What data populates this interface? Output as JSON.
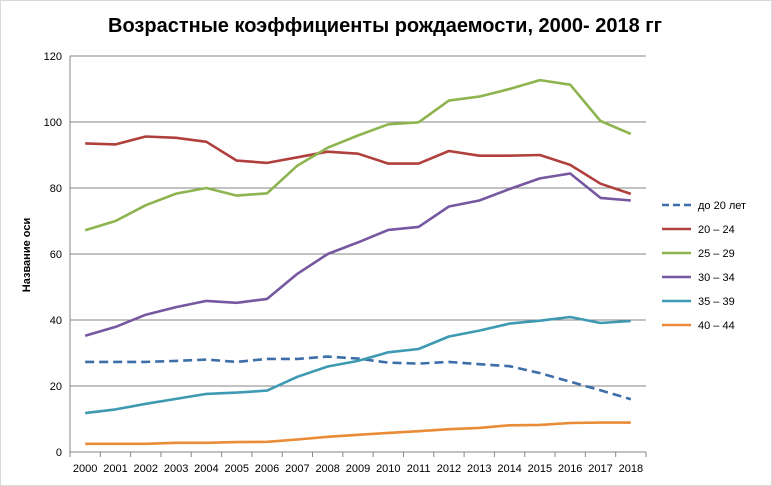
{
  "chart_data": {
    "type": "line",
    "title": "Возрастные коэффициенты рождаемости, 2000- 2018 гг",
    "xlabel": "",
    "ylabel": "Название оси",
    "ylim": [
      0,
      120
    ],
    "yticks": [
      0,
      20,
      40,
      60,
      80,
      100,
      120
    ],
    "grid": true,
    "legend_position": "right",
    "x": [
      "2000",
      "2001",
      "2002",
      "2003",
      "2004",
      "2005",
      "2006",
      "2007",
      "2008",
      "2009",
      "2010",
      "2011",
      "2012",
      "2013",
      "2014",
      "2015",
      "2016",
      "2017",
      "2018"
    ],
    "series": [
      {
        "name": "до 20 лет",
        "color": "#3C6EA8",
        "dashed": true,
        "values": [
          27.3,
          27.3,
          27.3,
          27.6,
          28.0,
          27.3,
          28.2,
          28.2,
          28.9,
          28.3,
          27.1,
          26.8,
          27.3,
          26.6,
          26.0,
          23.9,
          21.3,
          18.7,
          16.0
        ]
      },
      {
        "name": "20 – 24",
        "color": "#B0403D",
        "dashed": false,
        "values": [
          93.5,
          93.2,
          95.6,
          95.2,
          94.0,
          88.3,
          87.6,
          89.3,
          91.0,
          90.4,
          87.4,
          87.4,
          91.2,
          89.8,
          89.8,
          90.0,
          87.0,
          81.3,
          78.2
        ]
      },
      {
        "name": "25 – 29",
        "color": "#8DB44F",
        "dashed": false,
        "values": [
          67.2,
          70.0,
          74.8,
          78.3,
          80.0,
          77.7,
          78.4,
          86.8,
          92.2,
          95.9,
          99.3,
          99.9,
          106.5,
          107.7,
          110.0,
          112.7,
          111.3,
          100.3,
          96.4
        ]
      },
      {
        "name": "30 – 34",
        "color": "#7558A0",
        "dashed": false,
        "values": [
          35.2,
          37.9,
          41.6,
          43.9,
          45.8,
          45.2,
          46.4,
          54.0,
          60.0,
          63.5,
          67.3,
          68.2,
          74.4,
          76.2,
          79.7,
          82.9,
          84.4,
          77.0,
          76.2
        ]
      },
      {
        "name": "35 – 39",
        "color": "#3E9AB2",
        "dashed": false,
        "values": [
          11.8,
          12.9,
          14.6,
          16.1,
          17.6,
          18.0,
          18.6,
          22.8,
          25.9,
          27.6,
          30.2,
          31.2,
          35.0,
          36.8,
          38.9,
          39.8,
          40.9,
          39.1,
          39.7
        ]
      },
      {
        "name": "40 – 44",
        "color": "#E98C37",
        "dashed": false,
        "values": [
          2.5,
          2.5,
          2.5,
          2.8,
          2.8,
          3.0,
          3.1,
          3.8,
          4.6,
          5.2,
          5.8,
          6.3,
          6.9,
          7.3,
          8.1,
          8.2,
          8.8,
          8.9,
          8.9
        ]
      }
    ]
  }
}
